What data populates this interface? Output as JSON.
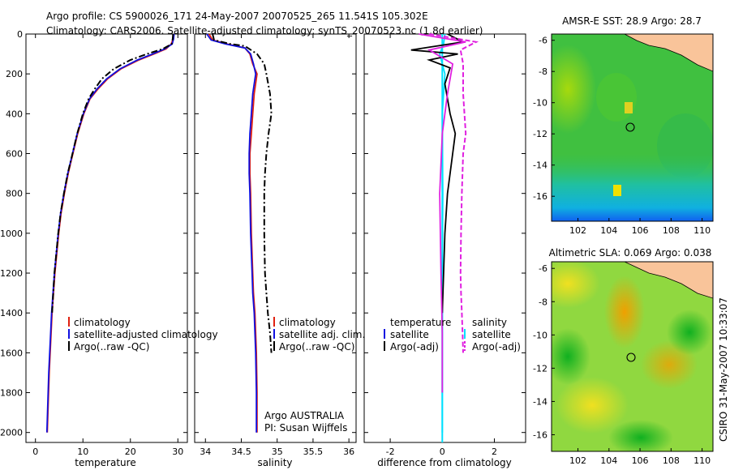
{
  "header": {
    "line1": "Argo profile: CS 5900026_171 24-May-2007 20070525_265 11.541S 105.302E",
    "line2": "Climatology: CARS2006. Satellite-adjusted climatology: synTS_20070523.nc (1.8d earlier)"
  },
  "footer": {
    "stamp": "CSIRO 31-May-2007 10:33:07"
  },
  "colors": {
    "climatology": "#e02010",
    "satellite": "#1010e0",
    "argo": "#000000",
    "temp_diff": "#00e0ff",
    "sal_diff": "#e020e0"
  },
  "chart_data": [
    {
      "id": "temperature",
      "type": "line",
      "xlabel": "temperature",
      "ylabel": "",
      "xlim": [
        -2,
        32
      ],
      "ylim": [
        2050,
        0
      ],
      "xticks": [
        0,
        10,
        20,
        30
      ],
      "xtick_labels": [
        "0",
        "10",
        "20",
        "30"
      ],
      "yticks": [
        0,
        200,
        400,
        600,
        800,
        1000,
        1200,
        1400,
        1600,
        1800,
        2000
      ],
      "ytick_labels": [
        "0",
        "200",
        "400",
        "600",
        "800",
        "1000",
        "1200",
        "1400",
        "1600",
        "1800",
        "2000"
      ],
      "legend": [
        "climatology",
        "satellite-adjusted climatology",
        "Argo(..raw -QC)"
      ],
      "series": [
        {
          "name": "climatology",
          "style": "solid",
          "x": [
            29.1,
            29.0,
            28.6,
            27.5,
            25.0,
            21.8,
            18.0,
            15.2,
            13.2,
            11.5,
            10.2,
            8.9,
            7.9,
            6.9,
            6.1,
            5.4,
            4.9,
            4.1,
            3.5,
            2.9,
            2.5
          ],
          "y": [
            0,
            25,
            50,
            75,
            100,
            130,
            175,
            225,
            275,
            325,
            400,
            500,
            600,
            700,
            800,
            900,
            1000,
            1200,
            1400,
            1700,
            2000
          ]
        },
        {
          "name": "satellite-adjusted climatology",
          "style": "solid",
          "x": [
            29.2,
            29.1,
            28.8,
            27.2,
            24.7,
            21.5,
            17.8,
            15.0,
            13.0,
            11.4,
            10.1,
            8.8,
            7.8,
            6.8,
            6.0,
            5.3,
            4.8,
            4.0,
            3.4,
            2.8,
            2.4
          ],
          "y": [
            0,
            25,
            50,
            75,
            100,
            130,
            175,
            225,
            275,
            325,
            400,
            500,
            600,
            700,
            800,
            900,
            1000,
            1200,
            1400,
            1700,
            2000
          ]
        },
        {
          "name": "Argo(..raw -QC)",
          "style": "dashdot",
          "x": [
            29.0,
            28.9,
            28.7,
            26.8,
            23.5,
            20.0,
            16.5,
            14.0,
            12.5,
            11.2,
            10.0,
            8.8,
            7.8,
            6.8,
            6.0,
            5.3,
            4.8,
            4.0,
            3.5
          ],
          "y": [
            0,
            25,
            50,
            75,
            100,
            130,
            175,
            225,
            275,
            325,
            400,
            500,
            600,
            700,
            800,
            900,
            1000,
            1200,
            1400
          ]
        }
      ]
    },
    {
      "id": "salinity",
      "type": "line",
      "xlabel": "salinity",
      "ylabel": "",
      "xlim": [
        33.85,
        36.1
      ],
      "ylim": [
        2050,
        0
      ],
      "xticks": [
        34,
        34.5,
        35,
        35.5,
        36
      ],
      "xtick_labels": [
        "34",
        "34.5",
        "35",
        "35.5",
        "36"
      ],
      "yticks": [
        0,
        200,
        400,
        600,
        800,
        1000,
        1200,
        1400,
        1600,
        1800,
        2000
      ],
      "legend": [
        "climatology",
        "satellite adj. clim.",
        "Argo(..raw -QC)"
      ],
      "annotation": [
        "Argo AUSTRALIA",
        "PI: Susan Wijffels"
      ],
      "series": [
        {
          "name": "climatology",
          "style": "solid",
          "x": [
            34.05,
            34.1,
            34.3,
            34.55,
            34.62,
            34.66,
            34.72,
            34.68,
            34.66,
            34.64,
            34.62,
            34.62,
            34.63,
            34.64,
            34.66,
            34.67,
            34.69,
            34.71,
            34.72,
            34.72
          ],
          "y": [
            0,
            30,
            50,
            70,
            100,
            150,
            200,
            300,
            400,
            500,
            600,
            700,
            800,
            1000,
            1200,
            1300,
            1400,
            1600,
            1800,
            2000
          ]
        },
        {
          "name": "satellite adj. clim.",
          "style": "solid",
          "x": [
            34.02,
            34.08,
            34.28,
            34.55,
            34.63,
            34.67,
            34.7,
            34.66,
            34.64,
            34.62,
            34.61,
            34.61,
            34.62,
            34.63,
            34.65,
            34.66,
            34.68,
            34.7,
            34.71,
            34.71
          ],
          "y": [
            0,
            30,
            50,
            70,
            100,
            150,
            200,
            300,
            400,
            500,
            600,
            700,
            800,
            1000,
            1200,
            1300,
            1400,
            1600,
            1800,
            2000
          ]
        },
        {
          "name": "Argo(..raw -QC)",
          "style": "dashdot",
          "x": [
            34.1,
            34.12,
            34.35,
            34.55,
            34.72,
            34.82,
            34.85,
            34.9,
            34.92,
            34.88,
            34.85,
            34.83,
            34.82,
            34.82,
            34.83,
            34.85,
            34.87,
            34.9,
            34.92
          ],
          "y": [
            0,
            30,
            50,
            60,
            100,
            150,
            200,
            300,
            400,
            500,
            600,
            700,
            800,
            1000,
            1200,
            1300,
            1400,
            1500,
            1600
          ]
        }
      ]
    },
    {
      "id": "difference",
      "type": "line",
      "xlabel": "difference from climatology",
      "ylabel": "",
      "xlim": [
        -3,
        3.2
      ],
      "ylim": [
        2050,
        0
      ],
      "xticks": [
        -2,
        0,
        2
      ],
      "xtick_labels": [
        "-2",
        "0",
        "2"
      ],
      "yticks": [
        0,
        200,
        400,
        600,
        800,
        1000,
        1200,
        1400,
        1600,
        1800,
        2000
      ],
      "legend_temperature": [
        "temperature",
        "satellite",
        "Argo(-adj)"
      ],
      "legend_salinity": [
        "salinity",
        "satellite",
        "Argo(-adj)"
      ],
      "series": [
        {
          "name": "temperature satellite",
          "style": "solid",
          "x": [
            0.1,
            0.05,
            -0.1,
            0.1,
            0.0,
            0.02,
            0.0,
            0.0,
            0.0,
            0.0
          ],
          "y": [
            0,
            50,
            100,
            200,
            400,
            800,
            1200,
            1500,
            1800,
            2000
          ]
        },
        {
          "name": "temperature Argo(-adj)",
          "style": "solid",
          "x": [
            0.2,
            0.8,
            -1.2,
            0.6,
            -0.5,
            0.3,
            0.1,
            0.3,
            0.5,
            0.4,
            0.2,
            0.1,
            0.05,
            0.0
          ],
          "y": [
            0,
            40,
            80,
            100,
            130,
            170,
            250,
            400,
            500,
            600,
            800,
            1000,
            1200,
            1400
          ]
        },
        {
          "name": "salinity satellite",
          "style": "solid",
          "x": [
            -0.9,
            0.9,
            -0.5,
            0.4,
            0.2,
            0.0,
            -0.1,
            -0.05,
            0.0,
            0.0
          ],
          "y": [
            0,
            40,
            80,
            150,
            300,
            500,
            800,
            1200,
            1500,
            1800
          ]
        },
        {
          "name": "salinity Argo(-adj)",
          "style": "dashed",
          "x": [
            -0.5,
            1.3,
            0.7,
            0.8,
            0.8,
            0.9,
            0.8,
            0.75,
            0.72,
            0.7,
            0.72,
            0.75,
            0.78,
            0.8
          ],
          "y": [
            0,
            40,
            80,
            150,
            300,
            500,
            600,
            800,
            1000,
            1200,
            1300,
            1400,
            1500,
            1600
          ]
        }
      ]
    },
    {
      "id": "amsr_sst_map",
      "type": "heatmap",
      "title": "AMSR-E SST: 28.9 Argo: 28.7",
      "xlim": [
        100.3,
        110.7
      ],
      "ylim": [
        -17.6,
        -5.6
      ],
      "xticks": [
        102,
        104,
        106,
        108,
        110
      ],
      "yticks": [
        -6,
        -8,
        -10,
        -12,
        -14,
        -16
      ],
      "xtick_labels": [
        "102",
        "104",
        "106",
        "108",
        "110"
      ],
      "ytick_labels": [
        "-6",
        "-8",
        "-10",
        "-12",
        "-14",
        "-16"
      ],
      "marker": {
        "lon": 105.3,
        "lat": -11.54
      }
    },
    {
      "id": "altimetric_sla_map",
      "type": "heatmap",
      "title": "Altimetric SLA: 0.069 Argo: 0.038",
      "xlim": [
        100.3,
        110.7
      ],
      "ylim": [
        -17.0,
        -5.6
      ],
      "xticks": [
        102,
        104,
        106,
        108,
        110
      ],
      "yticks": [
        -6,
        -8,
        -10,
        -12,
        -14,
        -16
      ],
      "xtick_labels": [
        "102",
        "104",
        "106",
        "108",
        "110"
      ],
      "ytick_labels": [
        "-6",
        "-8",
        "-10",
        "-12",
        "-14",
        "-16"
      ],
      "marker": {
        "lon": 105.3,
        "lat": -11.54
      }
    }
  ]
}
